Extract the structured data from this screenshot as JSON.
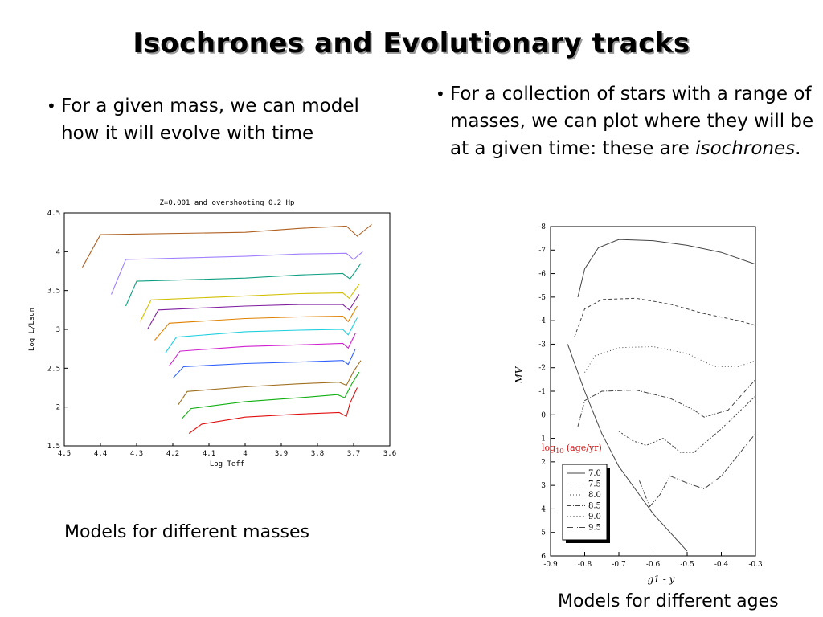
{
  "slide": {
    "title": "Isochrones and Evolutionary tracks",
    "bullet_left": "For a given mass, we can model how it will evolve with time",
    "bullet_right_prefix": "For a collection of stars with a range of masses, we can plot where they will be at a given time: these are ",
    "bullet_right_italic": "isochrones",
    "bullet_right_suffix": ".",
    "bullet_glyph": "•",
    "caption_left": "Models for different masses",
    "caption_right": "Models for different ages"
  },
  "chart_data": [
    {
      "type": "line",
      "title": "Z=0.001 and overshooting 0.2 Hp",
      "xlabel": "Log Teff",
      "ylabel": "Log L/Lsun",
      "xlim": [
        4.5,
        3.6
      ],
      "ylim": [
        1.5,
        4.5
      ],
      "x_ticks": [
        "4.5",
        "4.4",
        "4.3",
        "4.2",
        "4.1",
        "4",
        "3.9",
        "3.8",
        "3.7",
        "3.6"
      ],
      "y_ticks": [
        "1.5",
        "2",
        "2.5",
        "3",
        "3.5",
        "4",
        "4.5"
      ],
      "grid": false,
      "series": [
        {
          "color": "#e01010",
          "values": [
            [
              4.155,
              1.66
            ],
            [
              4.12,
              1.78
            ],
            [
              4.0,
              1.87
            ],
            [
              3.85,
              1.91
            ],
            [
              3.74,
              1.93
            ],
            [
              3.72,
              1.88
            ],
            [
              3.71,
              2.05
            ],
            [
              3.69,
              2.25
            ]
          ]
        },
        {
          "color": "#10b010",
          "values": [
            [
              4.175,
              1.85
            ],
            [
              4.15,
              1.98
            ],
            [
              4.0,
              2.07
            ],
            [
              3.85,
              2.12
            ],
            [
              3.745,
              2.16
            ],
            [
              3.725,
              2.12
            ],
            [
              3.705,
              2.3
            ],
            [
              3.685,
              2.45
            ]
          ]
        },
        {
          "color": "#a07020",
          "values": [
            [
              4.185,
              2.03
            ],
            [
              4.16,
              2.2
            ],
            [
              4.0,
              2.26
            ],
            [
              3.85,
              2.3
            ],
            [
              3.74,
              2.32
            ],
            [
              3.72,
              2.28
            ],
            [
              3.7,
              2.46
            ],
            [
              3.68,
              2.6
            ]
          ]
        },
        {
          "color": "#3060ff",
          "values": [
            [
              4.2,
              2.37
            ],
            [
              4.17,
              2.52
            ],
            [
              4.0,
              2.56
            ],
            [
              3.85,
              2.58
            ],
            [
              3.73,
              2.6
            ],
            [
              3.715,
              2.55
            ],
            [
              3.695,
              2.75
            ]
          ]
        },
        {
          "color": "#d020d0",
          "values": [
            [
              4.21,
              2.53
            ],
            [
              4.18,
              2.72
            ],
            [
              4.0,
              2.78
            ],
            [
              3.85,
              2.8
            ],
            [
              3.73,
              2.82
            ],
            [
              3.715,
              2.76
            ],
            [
              3.695,
              2.95
            ]
          ]
        },
        {
          "color": "#20d0e0",
          "values": [
            [
              4.22,
              2.7
            ],
            [
              4.19,
              2.9
            ],
            [
              4.0,
              2.97
            ],
            [
              3.85,
              2.99
            ],
            [
              3.73,
              3.0
            ],
            [
              3.715,
              2.93
            ],
            [
              3.69,
              3.15
            ]
          ]
        },
        {
          "color": "#e08000",
          "values": [
            [
              4.25,
              2.86
            ],
            [
              4.21,
              3.08
            ],
            [
              4.0,
              3.14
            ],
            [
              3.85,
              3.16
            ],
            [
              3.73,
              3.17
            ],
            [
              3.715,
              3.1
            ],
            [
              3.69,
              3.3
            ]
          ]
        },
        {
          "color": "#8020a0",
          "values": [
            [
              4.27,
              3.0
            ],
            [
              4.24,
              3.25
            ],
            [
              4.0,
              3.3
            ],
            [
              3.85,
              3.32
            ],
            [
              3.73,
              3.32
            ],
            [
              3.712,
              3.25
            ],
            [
              3.685,
              3.45
            ]
          ]
        },
        {
          "color": "#d0c000",
          "values": [
            [
              4.29,
              3.1
            ],
            [
              4.26,
              3.38
            ],
            [
              4.0,
              3.43
            ],
            [
              3.85,
              3.46
            ],
            [
              3.73,
              3.47
            ],
            [
              3.712,
              3.4
            ],
            [
              3.685,
              3.58
            ]
          ]
        },
        {
          "color": "#10a080",
          "values": [
            [
              4.33,
              3.3
            ],
            [
              4.3,
              3.62
            ],
            [
              4.0,
              3.66
            ],
            [
              3.85,
              3.7
            ],
            [
              3.73,
              3.72
            ],
            [
              3.71,
              3.65
            ],
            [
              3.68,
              3.85
            ]
          ]
        },
        {
          "color": "#a080ff",
          "values": [
            [
              4.37,
              3.45
            ],
            [
              4.33,
              3.9
            ],
            [
              4.0,
              3.94
            ],
            [
              3.85,
              3.97
            ],
            [
              3.72,
              3.98
            ],
            [
              3.7,
              3.9
            ],
            [
              3.675,
              4.0
            ]
          ]
        },
        {
          "color": "#b06020",
          "values": [
            [
              4.45,
              3.8
            ],
            [
              4.4,
              4.22
            ],
            [
              4.0,
              4.25
            ],
            [
              3.85,
              4.3
            ],
            [
              3.72,
              4.33
            ],
            [
              3.69,
              4.2
            ],
            [
              3.65,
              4.35
            ]
          ]
        }
      ]
    },
    {
      "type": "line",
      "xlabel": "g1 - y",
      "ylabel": "MV",
      "xlim": [
        -0.9,
        -0.3
      ],
      "ylim": [
        6,
        -8
      ],
      "x_ticks": [
        "-0.9",
        "-0.8",
        "-0.7",
        "-0.6",
        "-0.5",
        "-0.4",
        "-0.3"
      ],
      "y_ticks": [
        "-8",
        "-7",
        "-6",
        "-5",
        "-4",
        "-3",
        "-2",
        "-1",
        "0",
        "1",
        "2",
        "3",
        "4",
        "5",
        "6"
      ],
      "legend_title": "log10 (age/yr)",
      "legend_title_main": "log",
      "legend_title_sub": "10",
      "legend_title_rest": " (age/yr)",
      "legend_position": "lower-left",
      "series": [
        {
          "name": "7.0",
          "dash": "",
          "values": [
            [
              -0.82,
              -5.0
            ],
            [
              -0.8,
              -6.2
            ],
            [
              -0.76,
              -7.1
            ],
            [
              -0.7,
              -7.45
            ],
            [
              -0.6,
              -7.4
            ],
            [
              -0.5,
              -7.2
            ],
            [
              -0.4,
              -6.9
            ],
            [
              -0.3,
              -6.4
            ]
          ]
        },
        {
          "name": "7.5",
          "dash": "4 3",
          "values": [
            [
              -0.83,
              -3.3
            ],
            [
              -0.8,
              -4.5
            ],
            [
              -0.75,
              -4.9
            ],
            [
              -0.65,
              -4.95
            ],
            [
              -0.55,
              -4.7
            ],
            [
              -0.45,
              -4.3
            ],
            [
              -0.35,
              -4.0
            ],
            [
              -0.3,
              -3.8
            ]
          ]
        },
        {
          "name": "8.0",
          "dash": "1 3",
          "values": [
            [
              -0.8,
              -1.8
            ],
            [
              -0.77,
              -2.5
            ],
            [
              -0.7,
              -2.85
            ],
            [
              -0.6,
              -2.9
            ],
            [
              -0.5,
              -2.6
            ],
            [
              -0.42,
              -2.05
            ],
            [
              -0.35,
              -2.05
            ],
            [
              -0.3,
              -2.3
            ]
          ]
        },
        {
          "name": "8.5",
          "dash": "6 2 1 2",
          "values": [
            [
              -0.82,
              0.5
            ],
            [
              -0.8,
              -0.6
            ],
            [
              -0.75,
              -1.0
            ],
            [
              -0.65,
              -1.05
            ],
            [
              -0.55,
              -0.7
            ],
            [
              -0.48,
              -0.2
            ],
            [
              -0.45,
              0.1
            ],
            [
              -0.38,
              -0.2
            ],
            [
              -0.3,
              -1.5
            ]
          ]
        },
        {
          "name": "9.0",
          "dash": "2 2",
          "values": [
            [
              -0.7,
              0.7
            ],
            [
              -0.66,
              1.1
            ],
            [
              -0.62,
              1.3
            ],
            [
              -0.57,
              1.0
            ],
            [
              -0.52,
              1.6
            ],
            [
              -0.48,
              1.6
            ],
            [
              -0.4,
              0.6
            ],
            [
              -0.3,
              -0.8
            ]
          ]
        },
        {
          "name": "9.5",
          "dash": "8 2 1 2 1 2",
          "values": [
            [
              -0.64,
              2.8
            ],
            [
              -0.61,
              3.9
            ],
            [
              -0.58,
              3.4
            ],
            [
              -0.55,
              2.6
            ],
            [
              -0.5,
              2.9
            ],
            [
              -0.45,
              3.15
            ],
            [
              -0.4,
              2.6
            ],
            [
              -0.3,
              0.8
            ]
          ]
        },
        {
          "name": "",
          "dash": "",
          "values": [
            [
              -0.85,
              -3.0
            ],
            [
              -0.8,
              -1.0
            ],
            [
              -0.75,
              0.8
            ],
            [
              -0.7,
              2.2
            ],
            [
              -0.65,
              3.2
            ],
            [
              -0.6,
              4.2
            ],
            [
              -0.55,
              5.0
            ],
            [
              -0.5,
              5.8
            ]
          ]
        }
      ]
    }
  ]
}
